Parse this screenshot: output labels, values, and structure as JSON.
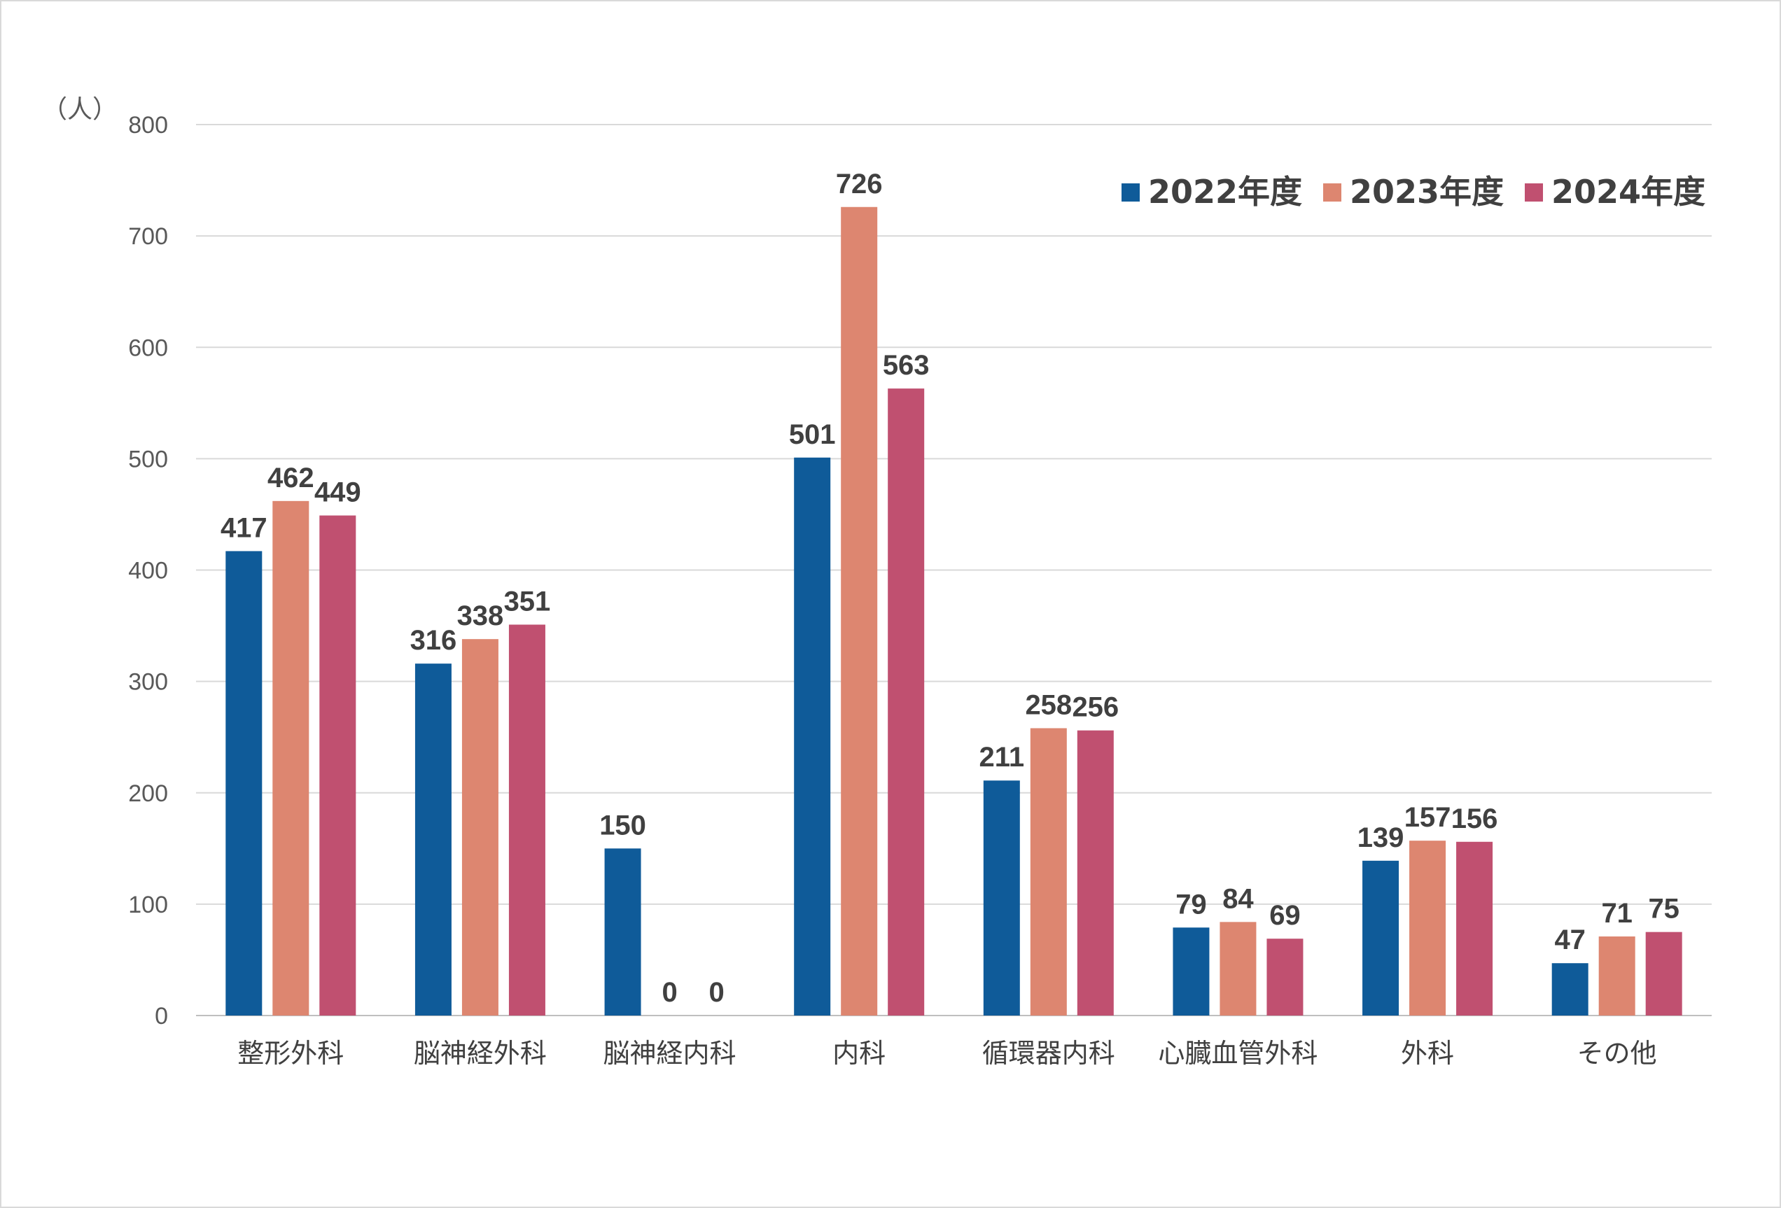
{
  "chart_data": {
    "type": "bar",
    "title": "",
    "xlabel": "",
    "ylabel": "（人）",
    "ylim": [
      0,
      800
    ],
    "yticks": [
      0,
      100,
      200,
      300,
      400,
      500,
      600,
      700,
      800
    ],
    "grid": true,
    "legend_position": "top-right",
    "categories": [
      "整形外科",
      "脳神経外科",
      "脳神経内科",
      "内科",
      "循環器内科",
      "心臓血管外科",
      "外科",
      "その他"
    ],
    "series": [
      {
        "name": "2022年度",
        "color": "#0f5b99",
        "values": [
          417,
          316,
          150,
          501,
          211,
          79,
          139,
          47
        ]
      },
      {
        "name": "2023年度",
        "color": "#dd8670",
        "values": [
          462,
          338,
          0,
          726,
          258,
          84,
          157,
          71
        ]
      },
      {
        "name": "2024年度",
        "color": "#c05070",
        "values": [
          449,
          351,
          0,
          563,
          256,
          69,
          156,
          75
        ]
      }
    ]
  }
}
